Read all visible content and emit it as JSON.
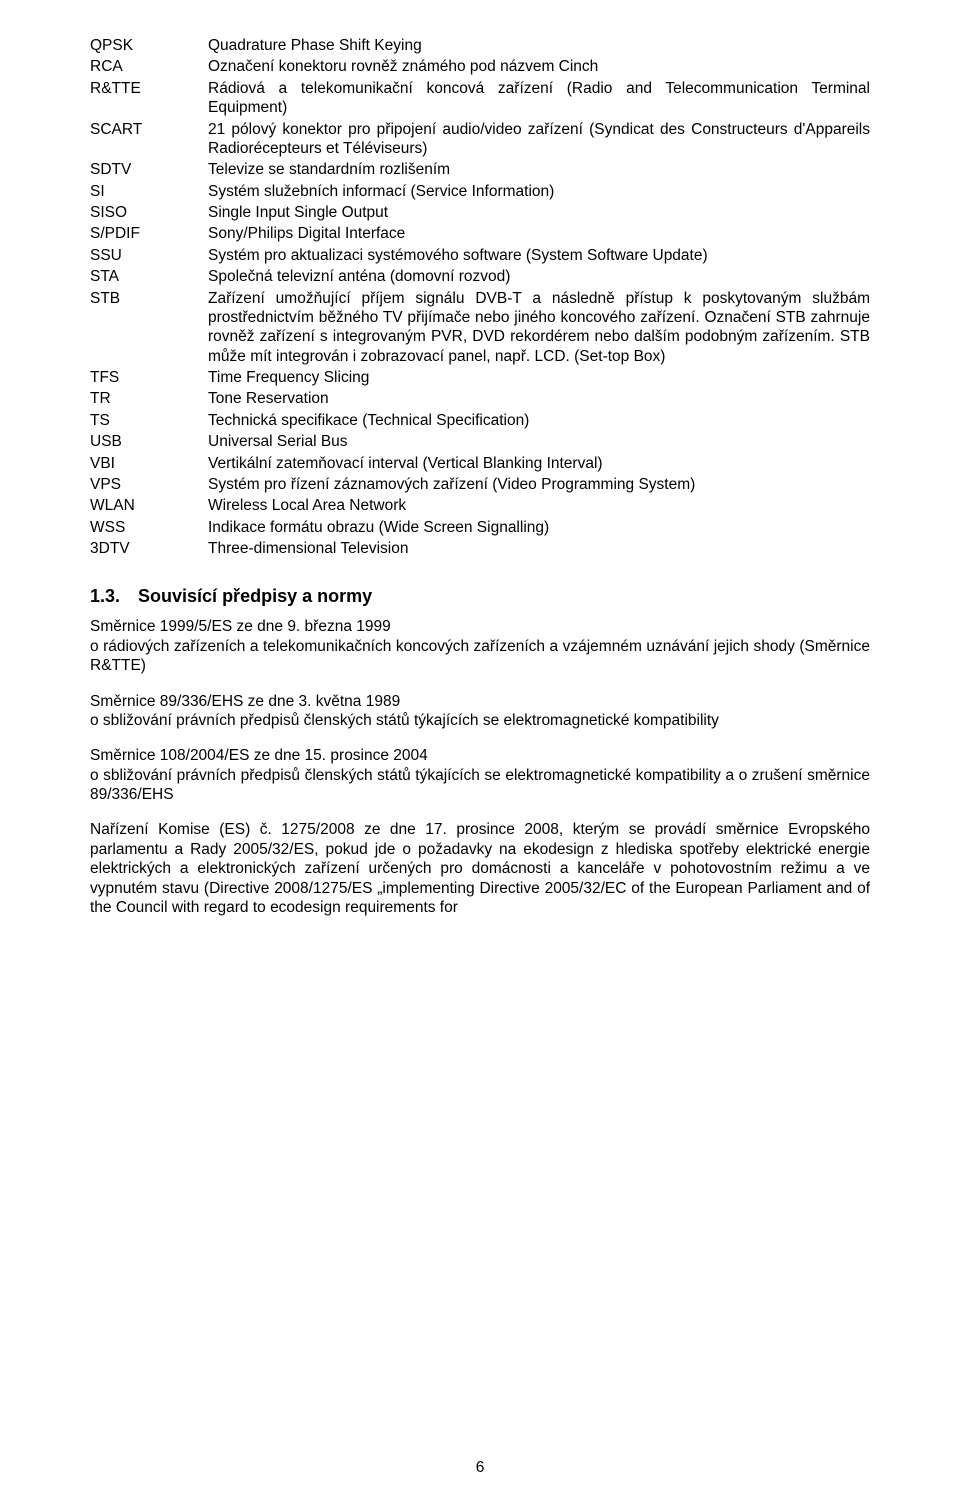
{
  "abbreviations": [
    {
      "term": "QPSK",
      "def": "Quadrature Phase Shift Keying"
    },
    {
      "term": "RCA",
      "def": "Označení konektoru rovněž známého pod názvem Cinch"
    },
    {
      "term": "R&TTE",
      "def": "Rádiová a telekomunikační koncová zařízení (Radio and Telecommunication Terminal Equipment)"
    },
    {
      "term": "SCART",
      "def": "21 pólový konektor pro připojení audio/video zařízení (Syndicat des Constructeurs d'Appareils Radiorécepteurs et Téléviseurs)"
    },
    {
      "term": "SDTV",
      "def": "Televize se standardním rozlišením"
    },
    {
      "term": "SI",
      "def": "Systém služebních informací (Service Information)"
    },
    {
      "term": "SISO",
      "def": "Single Input Single Output"
    },
    {
      "term": "S/PDIF",
      "def": "Sony/Philips Digital Interface"
    },
    {
      "term": "SSU",
      "def": "Systém pro aktualizaci systémového software (System Software Update)"
    },
    {
      "term": "STA",
      "def": "Společná televizní anténa (domovní rozvod)"
    },
    {
      "term": "STB",
      "def": "Zařízení umožňující příjem signálu DVB-T a následně přístup k poskytovaným službám prostřednictvím běžného TV přijímače nebo jiného koncového zařízení. Označení STB zahrnuje rovněž zařízení s integrovaným PVR, DVD rekordérem nebo dalším podobným zařízením. STB může mít integrován i zobrazovací panel, např. LCD. (Set-top Box)"
    },
    {
      "term": "TFS",
      "def": "Time Frequency Slicing"
    },
    {
      "term": "TR",
      "def": "Tone Reservation"
    },
    {
      "term": "TS",
      "def": "Technická specifikace (Technical Specification)"
    },
    {
      "term": "USB",
      "def": "Universal Serial Bus"
    },
    {
      "term": "VBI",
      "def": "Vertikální zatemňovací interval (Vertical Blanking Interval)"
    },
    {
      "term": "VPS",
      "def": "Systém pro řízení záznamových zařízení (Video Programming System)"
    },
    {
      "term": "WLAN",
      "def": "Wireless Local Area Network"
    },
    {
      "term": "WSS",
      "def": "Indikace formátu obrazu (Wide Screen Signalling)"
    },
    {
      "term": "3DTV",
      "def": "Three-dimensional Television"
    }
  ],
  "section": {
    "number": "1.3.",
    "title": "Souvisící předpisy a normy"
  },
  "paragraphs": [
    "Směrnice 1999/5/ES ze dne 9. března 1999\no rádiových zařízeních a telekomunikačních koncových zařízeních a vzájemném uznávání jejich shody (Směrnice R&TTE)",
    "Směrnice 89/336/EHS ze dne 3. května 1989\no sbližování právních předpisů členských států týkajících se elektromagnetické kompatibility",
    "Směrnice 108/2004/ES ze dne 15. prosince 2004\no sbližování právních předpisů členských států týkajících se elektromagnetické kompatibility a o zrušení směrnice 89/336/EHS",
    "Nařízení Komise (ES) č. 1275/2008 ze dne 17. prosince 2008, kterým se provádí směrnice Evropského parlamentu a Rady 2005/32/ES, pokud jde o požadavky na ekodesign z hlediska spotřeby elektrické energie elektrických a elektronických zařízení určených pro domácnosti a kanceláře v pohotovostním režimu a ve vypnutém stavu (Directive 2008/1275/ES „implementing Directive 2005/32/EC of the European Parliament and of the Council with regard to ecodesign requirements for"
  ],
  "pageNumber": "6"
}
